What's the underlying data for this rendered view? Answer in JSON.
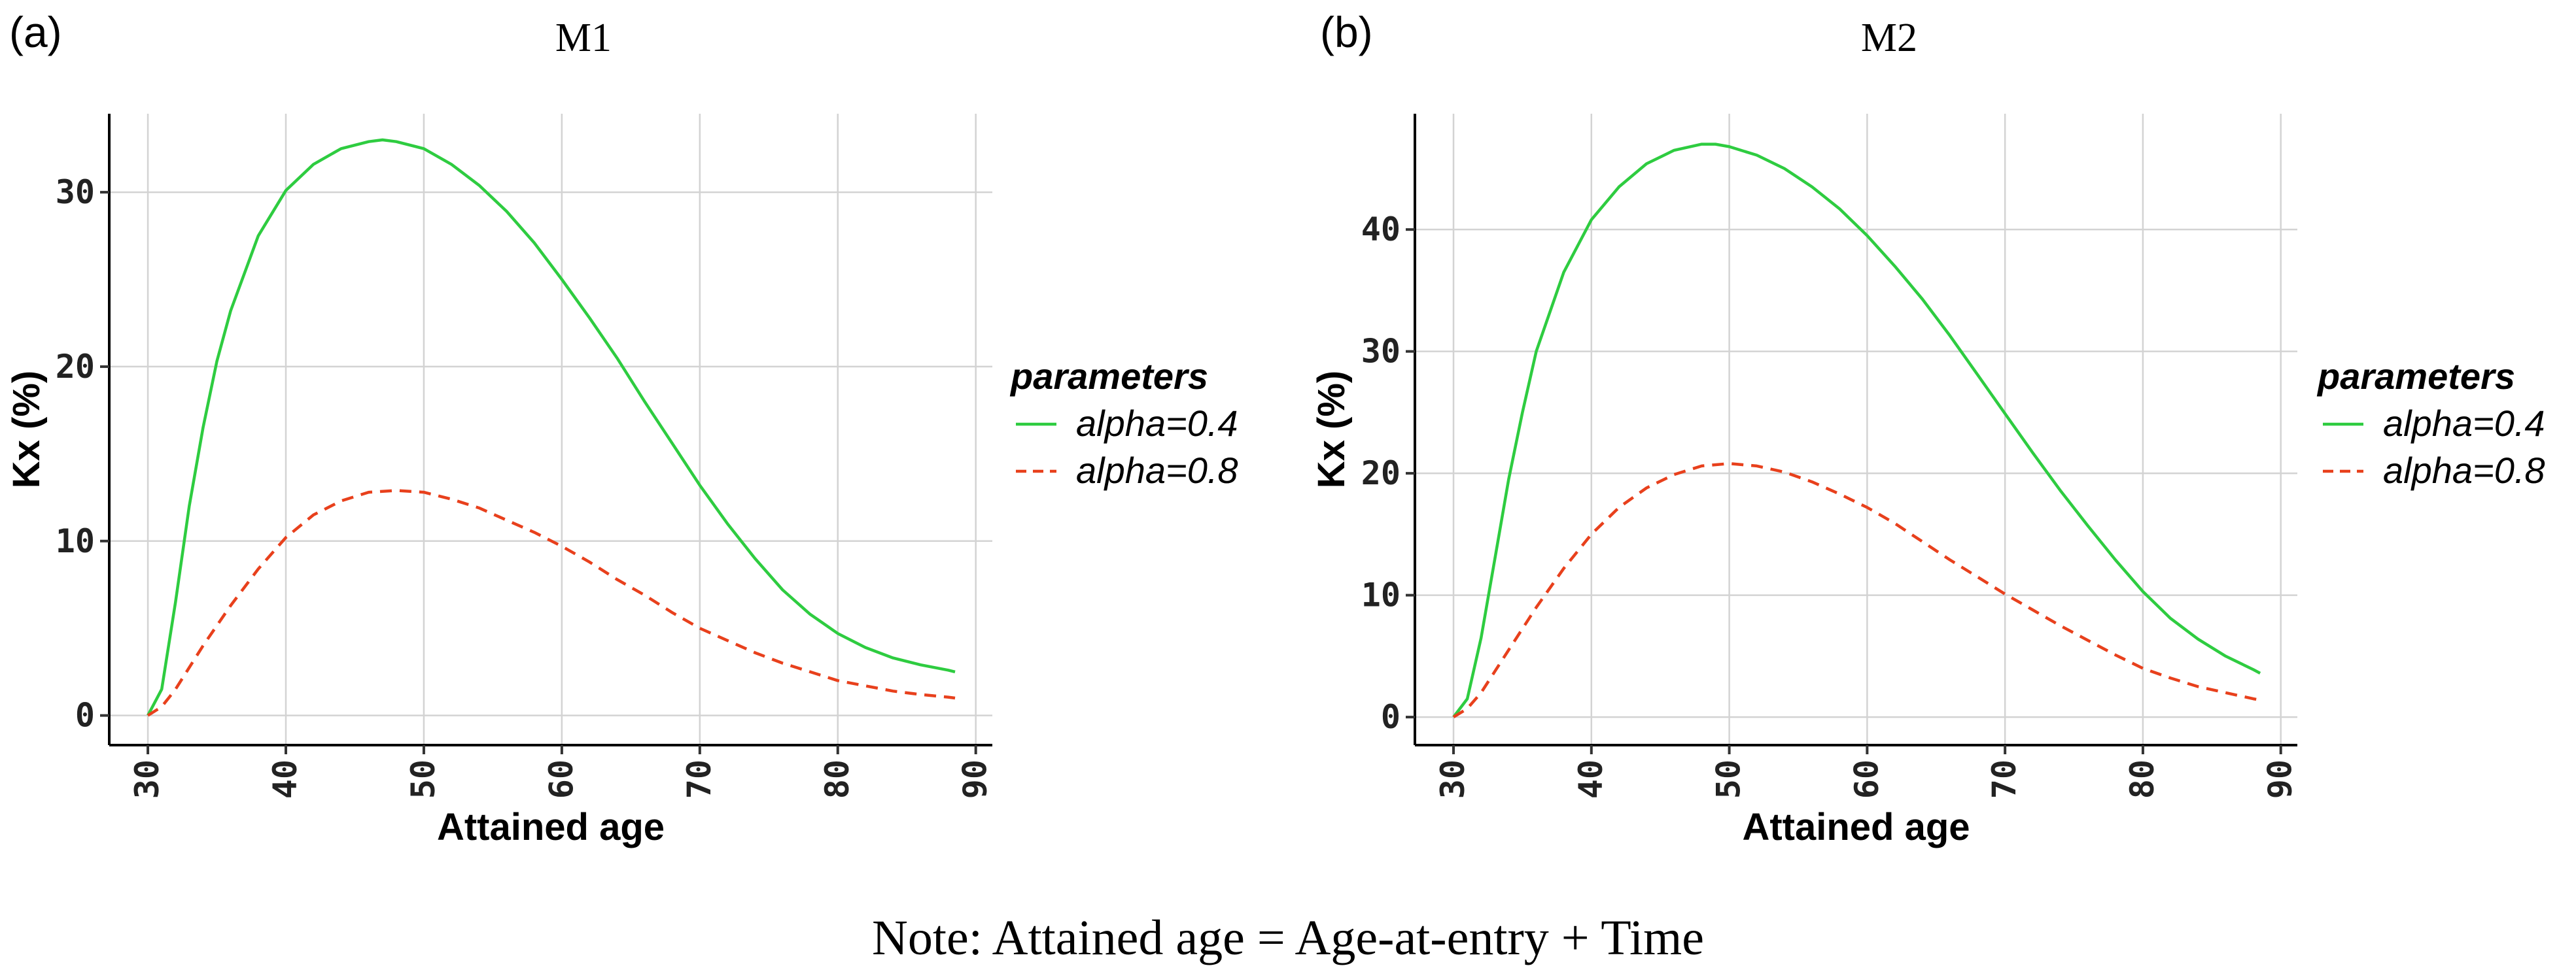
{
  "colors": {
    "alpha04": "#2ecc40",
    "alpha08": "#e8401c"
  },
  "note": "Note:  Attained age = Age-at-entry + Time",
  "chart_data": [
    {
      "type": "line",
      "panel_label": "(a)",
      "title": "M1",
      "xlabel": "Attained age",
      "ylabel": "Kx (%)",
      "xlim": [
        27.2,
        91.2
      ],
      "ylim": [
        -1.7,
        34.5
      ],
      "xticks": [
        30,
        40,
        50,
        60,
        70,
        80,
        90
      ],
      "yticks": [
        0,
        10,
        20,
        30
      ],
      "legend": {
        "title": "parameters",
        "position": "right"
      },
      "series": [
        {
          "name": "alpha=0.4",
          "style": "solid",
          "x": [
            30,
            31,
            32,
            33,
            34,
            35,
            36,
            38,
            40,
            42,
            44,
            46,
            47,
            48,
            50,
            52,
            54,
            56,
            58,
            60,
            62,
            64,
            66,
            68,
            70,
            72,
            74,
            76,
            78,
            80,
            82,
            84,
            86,
            88,
            88.5
          ],
          "y": [
            0,
            1.5,
            6.5,
            12,
            16.5,
            20.3,
            23.2,
            27.5,
            30.1,
            31.6,
            32.5,
            32.9,
            33.0,
            32.9,
            32.5,
            31.6,
            30.4,
            28.9,
            27.1,
            25.0,
            22.8,
            20.5,
            18.0,
            15.6,
            13.2,
            11.0,
            9.0,
            7.2,
            5.8,
            4.7,
            3.9,
            3.3,
            2.9,
            2.6,
            2.5
          ]
        },
        {
          "name": "alpha=0.8",
          "style": "dashed",
          "x": [
            30,
            31,
            32,
            34,
            36,
            38,
            40,
            42,
            44,
            46,
            48,
            50,
            52,
            54,
            56,
            58,
            60,
            62,
            64,
            66,
            68,
            70,
            72,
            74,
            76,
            78,
            80,
            82,
            84,
            86,
            88,
            88.5
          ],
          "y": [
            0,
            0.5,
            1.5,
            4,
            6.3,
            8.4,
            10.2,
            11.5,
            12.3,
            12.8,
            12.9,
            12.8,
            12.4,
            11.9,
            11.2,
            10.5,
            9.7,
            8.8,
            7.8,
            6.9,
            5.9,
            5.0,
            4.3,
            3.6,
            3.0,
            2.5,
            2.0,
            1.7,
            1.4,
            1.2,
            1.05,
            1.0
          ]
        }
      ]
    },
    {
      "type": "line",
      "panel_label": "(b)",
      "title": "M2",
      "xlabel": "Attained age",
      "ylabel": "Kx (%)",
      "xlim": [
        27.2,
        91.2
      ],
      "ylim": [
        -2.3,
        49.5
      ],
      "xticks": [
        30,
        40,
        50,
        60,
        70,
        80,
        90
      ],
      "yticks": [
        0,
        10,
        20,
        30,
        40
      ],
      "legend": {
        "title": "parameters",
        "position": "right"
      },
      "series": [
        {
          "name": "alpha=0.4",
          "style": "solid",
          "x": [
            30,
            31,
            32,
            33,
            34,
            35,
            36,
            38,
            40,
            42,
            44,
            46,
            48,
            49,
            50,
            52,
            54,
            56,
            58,
            60,
            62,
            64,
            66,
            68,
            70,
            72,
            74,
            76,
            78,
            80,
            82,
            84,
            86,
            88,
            88.5
          ],
          "y": [
            0,
            1.5,
            6.5,
            13,
            19.5,
            25,
            30,
            36.5,
            40.8,
            43.5,
            45.4,
            46.5,
            47.0,
            47.0,
            46.8,
            46.1,
            45.0,
            43.5,
            41.7,
            39.5,
            37.0,
            34.3,
            31.3,
            28.1,
            24.9,
            21.7,
            18.6,
            15.7,
            12.9,
            10.3,
            8.1,
            6.4,
            5.0,
            3.9,
            3.6
          ]
        },
        {
          "name": "alpha=0.8",
          "style": "dashed",
          "x": [
            30,
            31,
            32,
            34,
            36,
            38,
            40,
            42,
            44,
            46,
            48,
            50,
            52,
            54,
            56,
            58,
            60,
            62,
            64,
            66,
            68,
            70,
            72,
            74,
            76,
            78,
            80,
            82,
            84,
            86,
            88,
            88.5
          ],
          "y": [
            0,
            0.7,
            2,
            5.5,
            9,
            12.2,
            15,
            17.2,
            18.8,
            19.9,
            20.6,
            20.8,
            20.6,
            20.1,
            19.3,
            18.3,
            17.2,
            15.9,
            14.4,
            12.9,
            11.5,
            10.1,
            8.8,
            7.5,
            6.3,
            5.1,
            4.0,
            3.2,
            2.5,
            2.0,
            1.5,
            1.4
          ]
        }
      ]
    }
  ]
}
